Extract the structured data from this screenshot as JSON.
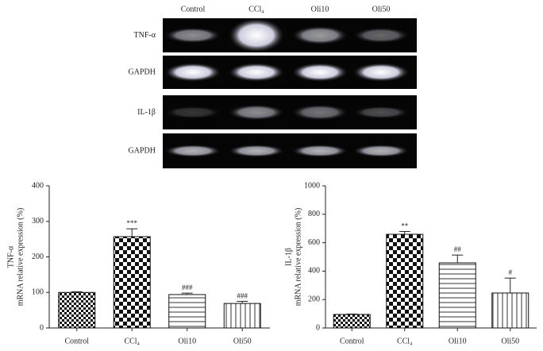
{
  "gel": {
    "lanes": [
      "Control",
      "CCl₄",
      "Oli10",
      "Oli50"
    ],
    "rows": [
      "TNF-α",
      "GAPDH",
      "IL-1β",
      "GAPDH"
    ]
  },
  "chart_data": [
    {
      "type": "bar",
      "ylabel": [
        "TNF-α",
        "mRNA relative expression (%)"
      ],
      "categories": [
        "Control",
        "CCl₄",
        "Oli10",
        "Oli50"
      ],
      "values": [
        100,
        257,
        94,
        69
      ],
      "errors": [
        2,
        22,
        4,
        6
      ],
      "significance": [
        null,
        "***",
        "###",
        "###"
      ],
      "patterns": [
        "checker-small",
        "checker-large",
        "horizontal",
        "vertical"
      ],
      "ylim": [
        0,
        400
      ],
      "yticks": [
        0,
        100,
        200,
        300,
        400
      ]
    },
    {
      "type": "bar",
      "ylabel": [
        "IL-1β",
        "mRNA relative expression (%)"
      ],
      "categories": [
        "Control",
        "CCl₄",
        "Oli10",
        "Oli50"
      ],
      "values": [
        95,
        659,
        458,
        246
      ],
      "errors": [
        3,
        20,
        55,
        105
      ],
      "significance": [
        null,
        "**",
        "##",
        "#"
      ],
      "patterns": [
        "checker-small",
        "checker-large",
        "horizontal",
        "vertical"
      ],
      "ylim": [
        0,
        1000
      ],
      "yticks": [
        0,
        200,
        400,
        600,
        800,
        1000
      ]
    }
  ]
}
